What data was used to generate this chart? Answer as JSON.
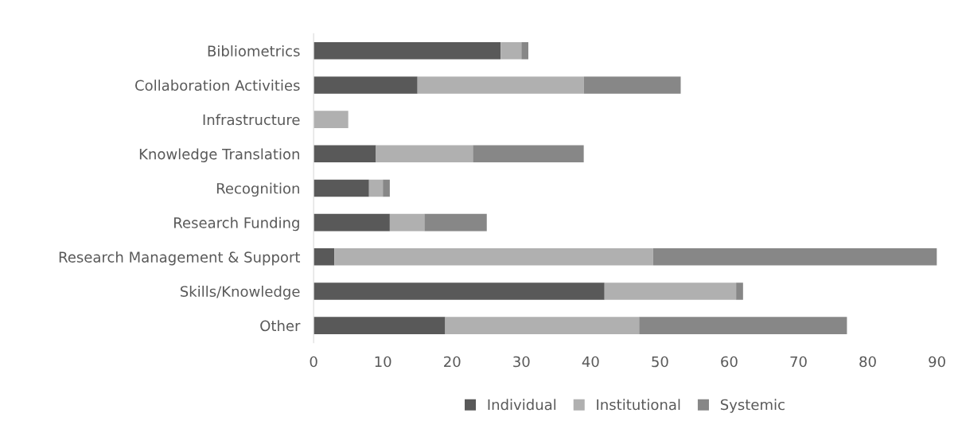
{
  "chart_data": {
    "type": "bar",
    "orientation": "horizontal",
    "stacked": true,
    "categories": [
      "Bibliometrics",
      "Collaboration Activities",
      "Infrastructure",
      "Knowledge Translation",
      "Recognition",
      "Research Funding",
      "Research Management & Support",
      "Skills/Knowledge",
      "Other"
    ],
    "series": [
      {
        "name": "Individual",
        "color": "#595959",
        "values": [
          27,
          15,
          0,
          9,
          8,
          11,
          3,
          42,
          19
        ]
      },
      {
        "name": "Institutional",
        "color": "#b0b0b0",
        "values": [
          3,
          24,
          5,
          14,
          2,
          5,
          46,
          19,
          28
        ]
      },
      {
        "name": "Systemic",
        "color": "#878787",
        "values": [
          1,
          14,
          0,
          16,
          1,
          9,
          41,
          1,
          30
        ]
      }
    ],
    "xlim": [
      0,
      90
    ],
    "xticks": [
      0,
      10,
      20,
      30,
      40,
      50,
      60,
      70,
      80,
      90
    ],
    "grid": false,
    "legend": "bottom"
  }
}
